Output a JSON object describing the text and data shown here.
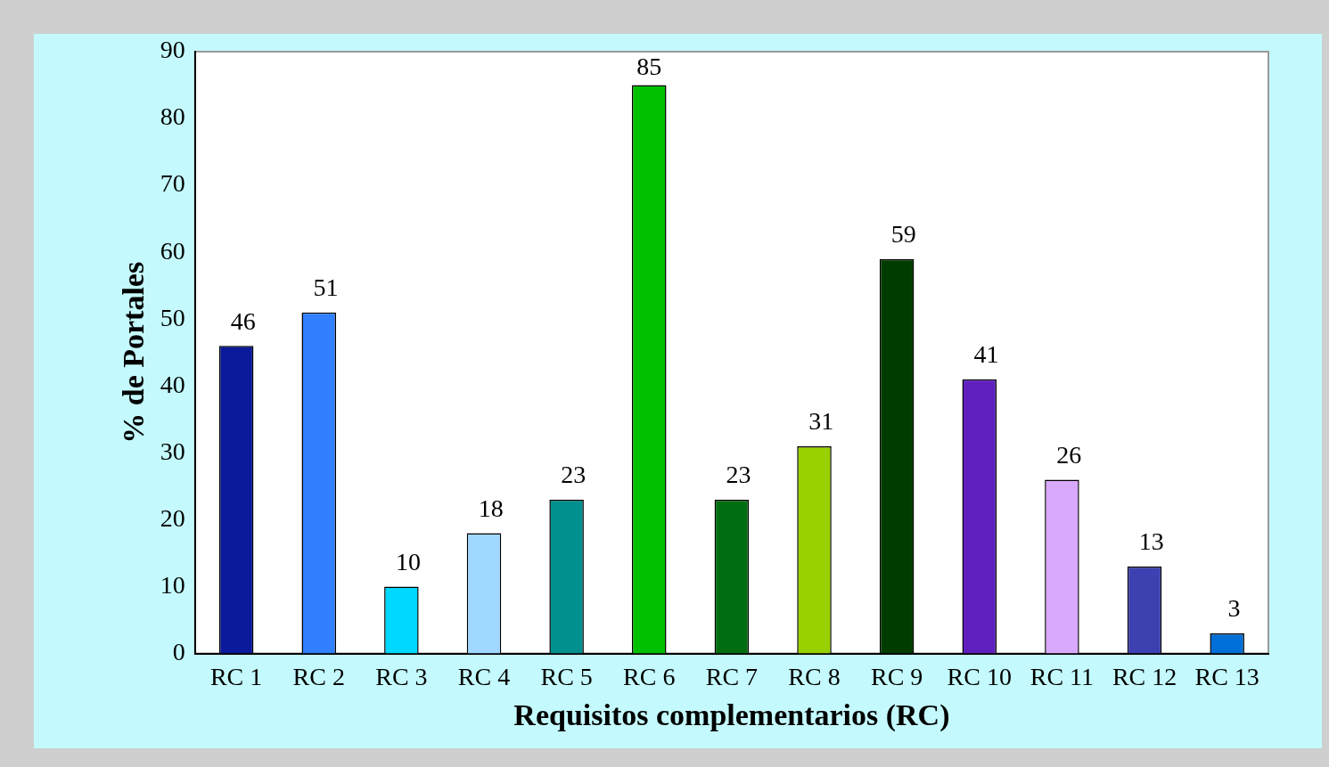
{
  "chart_data": {
    "type": "bar",
    "xlabel": "Requisitos complementarios (RC)",
    "ylabel": "% de Portales",
    "categories": [
      "RC 1",
      "RC 2",
      "RC 3",
      "RC 4",
      "RC 5",
      "RC 6",
      "RC 7",
      "RC 8",
      "RC 9",
      "RC 10",
      "RC 11",
      "RC 12",
      "RC 13"
    ],
    "values": [
      46,
      51,
      10,
      18,
      23,
      85,
      23,
      31,
      59,
      41,
      26,
      13,
      3
    ],
    "colors": [
      "#0a1a9a",
      "#3080ff",
      "#00d8ff",
      "#a0d8ff",
      "#009090",
      "#00c000",
      "#006e10",
      "#99d100",
      "#003b00",
      "#6020c0",
      "#d9a8ff",
      "#3d40b0",
      "#0070d8"
    ],
    "ylim": [
      0,
      90
    ],
    "yticks": [
      0,
      10,
      20,
      30,
      40,
      50,
      60,
      70,
      80,
      90
    ],
    "data_labels": true,
    "grid": false,
    "legend": false
  }
}
